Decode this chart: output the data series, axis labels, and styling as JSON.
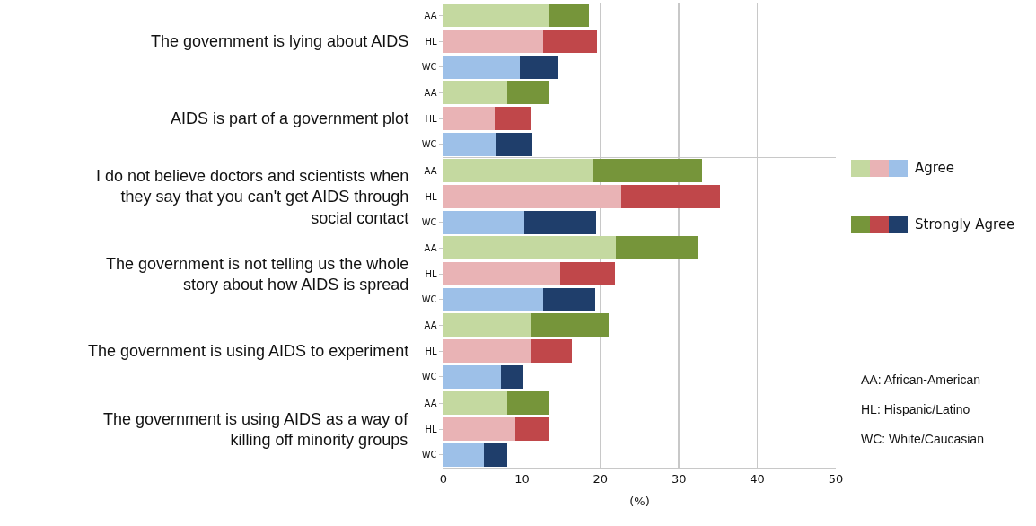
{
  "chart_data": [
    {
      "type": "bar",
      "orientation": "horizontal",
      "stacked": true,
      "ylabel": "The government is lying about AIDS",
      "categories": [
        "AA",
        "HL",
        "WC"
      ],
      "xlim": [
        0,
        50
      ],
      "xticks": [
        0,
        10,
        20,
        30,
        40,
        50
      ],
      "grid": "x",
      "tick_labels": "y",
      "series": [
        {
          "colors": [
            "#c4d9a0",
            "#e9b3b5",
            "#9dc0e8"
          ],
          "values": [
            13.5,
            12.7,
            9.7
          ]
        },
        {
          "colors": [
            "#76953a",
            "#c0474a",
            "#1f3e6b"
          ],
          "values": [
            5.0,
            6.9,
            5.0
          ]
        }
      ]
    },
    {
      "type": "bar",
      "orientation": "horizontal",
      "stacked": true,
      "ylabel": "AIDS is part of a government plot",
      "categories": [
        "AA",
        "HL",
        "WC"
      ],
      "xlim": [
        0,
        50
      ],
      "xticks": [
        0,
        10,
        20,
        30,
        40,
        50
      ],
      "grid": "x",
      "tick_labels": "y",
      "series": [
        {
          "colors": [
            "#c4d9a0",
            "#e9b3b5",
            "#9dc0e8"
          ],
          "values": [
            8.1,
            6.5,
            6.8
          ]
        },
        {
          "colors": [
            "#76953a",
            "#c0474a",
            "#1f3e6b"
          ],
          "values": [
            5.4,
            4.7,
            4.5
          ]
        }
      ]
    },
    {
      "type": "bar",
      "orientation": "horizontal",
      "stacked": true,
      "ylabel": "I do not believe doctors and scientists when they say that you can't get AIDS through social contact",
      "categories": [
        "AA",
        "HL",
        "WC"
      ],
      "xlim": [
        0,
        50
      ],
      "xticks": [
        0,
        10,
        20,
        30,
        40,
        50
      ],
      "grid": "x",
      "tick_labels": "y",
      "legend": "right",
      "series": [
        {
          "name": "Agree",
          "colors": [
            "#c4d9a0",
            "#e9b3b5",
            "#9dc0e8"
          ],
          "values": [
            19.0,
            22.6,
            10.3
          ]
        },
        {
          "name": "Strongly Agree",
          "colors": [
            "#76953a",
            "#c0474a",
            "#1f3e6b"
          ],
          "values": [
            14.0,
            12.6,
            9.2
          ]
        }
      ]
    },
    {
      "type": "bar",
      "orientation": "horizontal",
      "stacked": true,
      "ylabel": "The government is not telling us the whole story about how AIDS is spread",
      "categories": [
        "AA",
        "HL",
        "WC"
      ],
      "xlim": [
        0,
        50
      ],
      "xticks": [
        0,
        10,
        20,
        30,
        40,
        50
      ],
      "grid": "x",
      "tick_labels": "y",
      "series": [
        {
          "colors": [
            "#c4d9a0",
            "#e9b3b5",
            "#9dc0e8"
          ],
          "values": [
            22.0,
            14.9,
            12.7
          ]
        },
        {
          "colors": [
            "#76953a",
            "#c0474a",
            "#1f3e6b"
          ],
          "values": [
            10.4,
            6.9,
            6.6
          ]
        }
      ]
    },
    {
      "type": "bar",
      "orientation": "horizontal",
      "stacked": true,
      "ylabel": "The government is using AIDS to experiment",
      "categories": [
        "AA",
        "HL",
        "WC"
      ],
      "xlim": [
        0,
        50
      ],
      "xticks": [
        0,
        10,
        20,
        30,
        40,
        50
      ],
      "grid": "x",
      "tick_labels": "y",
      "series": [
        {
          "colors": [
            "#c4d9a0",
            "#e9b3b5",
            "#9dc0e8"
          ],
          "values": [
            11.1,
            11.2,
            7.3
          ]
        },
        {
          "colors": [
            "#76953a",
            "#c0474a",
            "#1f3e6b"
          ],
          "values": [
            9.9,
            5.2,
            2.9
          ]
        }
      ]
    },
    {
      "type": "bar",
      "orientation": "horizontal",
      "stacked": true,
      "ylabel": "The government is using AIDS as a way of killing off minority groups",
      "xlabel": "(%)",
      "categories": [
        "AA",
        "HL",
        "WC"
      ],
      "xlim": [
        0,
        50
      ],
      "xticks": [
        0,
        10,
        20,
        30,
        40,
        50
      ],
      "grid": "x",
      "annotations": [
        "AA: African-American",
        "HL: Hispanic/Latino",
        "WC: White/Caucasian"
      ],
      "series": [
        {
          "colors": [
            "#c4d9a0",
            "#e9b3b5",
            "#9dc0e8"
          ],
          "values": [
            8.1,
            9.2,
            5.2
          ]
        },
        {
          "colors": [
            "#76953a",
            "#c0474a",
            "#1f3e6b"
          ],
          "values": [
            5.4,
            4.2,
            2.9
          ]
        }
      ]
    }
  ]
}
